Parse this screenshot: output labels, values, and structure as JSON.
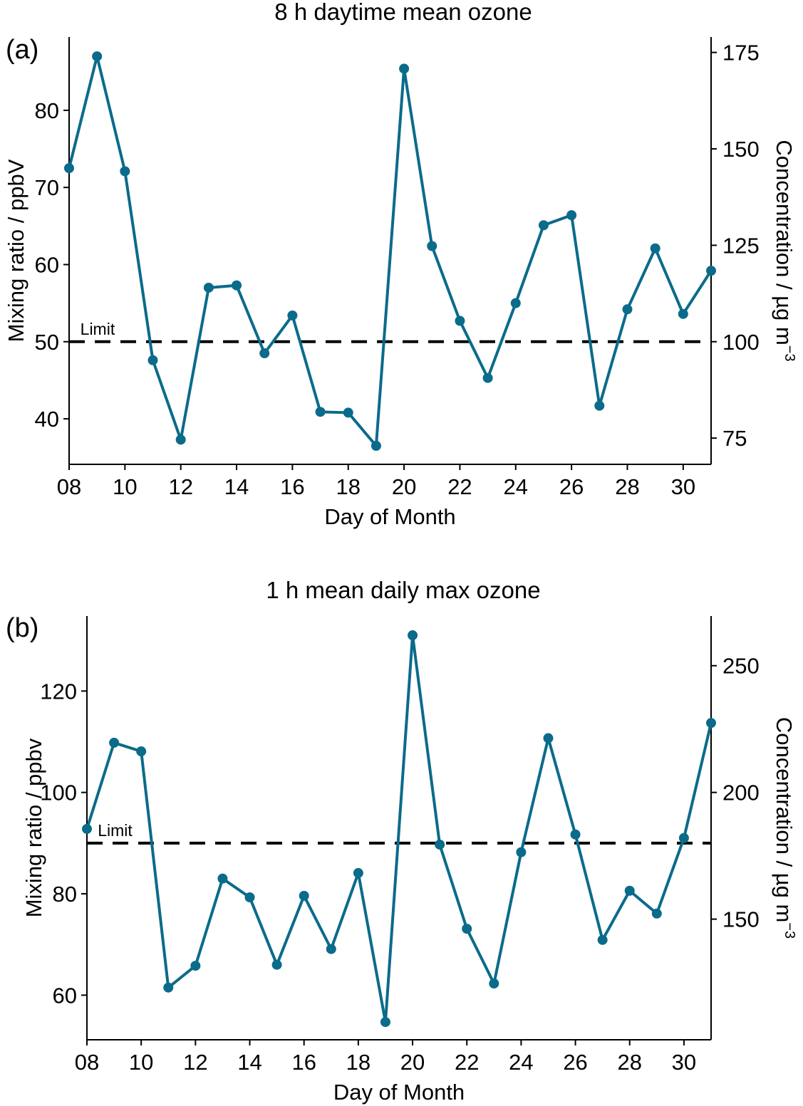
{
  "chart_data": [
    {
      "type": "line",
      "panel_label": "(a)",
      "title": "8 h daytime mean ozone",
      "xlabel": "Day of Month",
      "ylabel": "Mixing ratio / ppbV",
      "ylabel_right": "Concentration /  µg m",
      "ylabel_right_sup": "−3",
      "x": [
        8,
        9,
        10,
        11,
        12,
        13,
        14,
        15,
        16,
        17,
        18,
        19,
        20,
        21,
        22,
        23,
        24,
        25,
        26,
        27,
        28,
        29,
        30,
        31
      ],
      "values": [
        72.5,
        87.0,
        72.1,
        47.6,
        37.3,
        57.0,
        57.3,
        48.5,
        53.4,
        40.9,
        40.8,
        36.5,
        85.4,
        62.4,
        52.7,
        45.3,
        55.0,
        65.1,
        66.4,
        41.7,
        54.2,
        62.1,
        53.6,
        59.2
      ],
      "xlim": [
        8,
        31
      ],
      "ylim": [
        34.1,
        89.5
      ],
      "xticks": [
        8,
        10,
        12,
        14,
        16,
        18,
        20,
        22,
        24,
        26,
        28,
        30
      ],
      "xtick_labels": [
        "08",
        "10",
        "12",
        "14",
        "16",
        "18",
        "20",
        "22",
        "24",
        "26",
        "28",
        "30"
      ],
      "yticks": [
        40,
        50,
        60,
        70,
        80
      ],
      "yticks_right": [
        75,
        100,
        125,
        150,
        175
      ],
      "right_axis_factor": 2.0,
      "limit": 50,
      "limit_label": "Limit",
      "color": "#0b6b8a"
    },
    {
      "type": "line",
      "panel_label": "(b)",
      "title": "1 h mean daily max ozone",
      "xlabel": "Day of Month",
      "ylabel": "Mixing ratio / ppbv",
      "ylabel_right": "Concentration /  µg m",
      "ylabel_right_sup": "−3",
      "x": [
        8,
        9,
        10,
        11,
        12,
        13,
        14,
        15,
        16,
        17,
        18,
        19,
        20,
        21,
        22,
        23,
        24,
        25,
        26,
        27,
        28,
        29,
        30,
        31
      ],
      "values": [
        92.8,
        109.8,
        108.1,
        61.5,
        65.8,
        83.0,
        79.3,
        66.0,
        79.6,
        69.1,
        84.1,
        54.7,
        131.0,
        89.7,
        73.1,
        62.3,
        88.2,
        110.7,
        91.7,
        70.9,
        80.6,
        76.1,
        91.0,
        113.7
      ],
      "xlim": [
        8,
        31
      ],
      "ylim": [
        51.2,
        134.8
      ],
      "xticks": [
        8,
        10,
        12,
        14,
        16,
        18,
        20,
        22,
        24,
        26,
        28,
        30
      ],
      "xtick_labels": [
        "08",
        "10",
        "12",
        "14",
        "16",
        "18",
        "20",
        "22",
        "24",
        "26",
        "28",
        "30"
      ],
      "yticks": [
        60,
        80,
        100,
        120
      ],
      "yticks_right": [
        150,
        200,
        250
      ],
      "right_axis_factor": 2.0,
      "limit": 90,
      "limit_label": "Limit",
      "color": "#0b6b8a"
    }
  ]
}
